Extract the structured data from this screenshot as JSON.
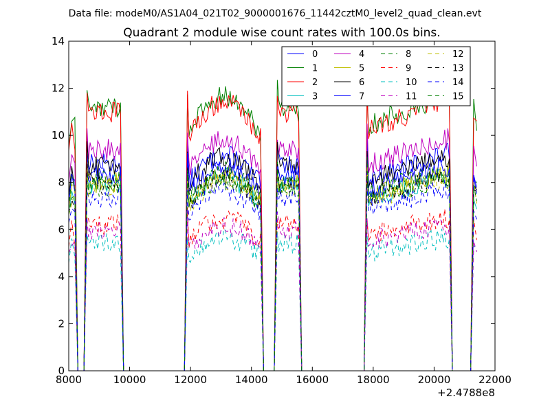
{
  "figure": {
    "suptitle": "Data file: modeM0/AS1A04_021T02_9000001676_11442cztM0_level2_quad_clean.evt"
  },
  "chart_data": {
    "type": "line",
    "title": "Quadrant 2 module wise count rates with 100.0s bins.",
    "xlabel": "",
    "ylabel": "",
    "xlim": [
      8000,
      22000
    ],
    "ylim": [
      0,
      14
    ],
    "x_offset_label": "+2.4788e8",
    "x_ticks": [
      8000,
      10000,
      12000,
      14000,
      16000,
      18000,
      20000,
      22000
    ],
    "x_tick_labels": [
      "8000",
      "10000",
      "12000",
      "14000",
      "16000",
      "18000",
      "20000",
      "22000"
    ],
    "y_ticks": [
      0,
      2,
      4,
      6,
      8,
      10,
      12,
      14
    ],
    "y_tick_labels": [
      "0",
      "2",
      "4",
      "6",
      "8",
      "10",
      "12",
      "14"
    ],
    "grid": false,
    "legend": {
      "placement": "top-right",
      "columns": 4
    },
    "segments": [
      {
        "start": 8100,
        "end": 8200,
        "shape": "edge"
      },
      {
        "start": 8600,
        "end": 9700,
        "shape": "flat"
      },
      {
        "start": 11900,
        "end": 14300,
        "shape": "hump"
      },
      {
        "start": 14850,
        "end": 15550,
        "shape": "flat"
      },
      {
        "start": 17800,
        "end": 20500,
        "shape": "rise"
      },
      {
        "start": 21300,
        "end": 21400,
        "shape": "edge"
      }
    ],
    "series": [
      {
        "name": "0",
        "color": "#0000ff",
        "dash": "solid",
        "level": 8.8
      },
      {
        "name": "1",
        "color": "#008000",
        "dash": "solid",
        "level": 11.2
      },
      {
        "name": "2",
        "color": "#ff0000",
        "dash": "solid",
        "level": 11.0
      },
      {
        "name": "3",
        "color": "#00bfbf",
        "dash": "solid",
        "level": 7.9
      },
      {
        "name": "4",
        "color": "#bf00bf",
        "dash": "solid",
        "level": 9.4
      },
      {
        "name": "5",
        "color": "#bfbf00",
        "dash": "solid",
        "level": 8.0
      },
      {
        "name": "6",
        "color": "#000000",
        "dash": "solid",
        "level": 8.7
      },
      {
        "name": "7",
        "color": "#0000ff",
        "dash": "solid",
        "level": 8.3
      },
      {
        "name": "8",
        "color": "#008000",
        "dash": "dashed",
        "level": 8.1
      },
      {
        "name": "9",
        "color": "#ff0000",
        "dash": "dashed",
        "level": 6.2
      },
      {
        "name": "10",
        "color": "#00bfbf",
        "dash": "dashed",
        "level": 5.4
      },
      {
        "name": "11",
        "color": "#bf00bf",
        "dash": "dashed",
        "level": 5.9
      },
      {
        "name": "12",
        "color": "#bfbf00",
        "dash": "dashed",
        "level": 7.8
      },
      {
        "name": "13",
        "color": "#000000",
        "dash": "dashed",
        "level": 7.9
      },
      {
        "name": "14",
        "color": "#0000ff",
        "dash": "dashed",
        "level": 7.4
      },
      {
        "name": "15",
        "color": "#008000",
        "dash": "dashed",
        "level": 7.8
      }
    ]
  }
}
